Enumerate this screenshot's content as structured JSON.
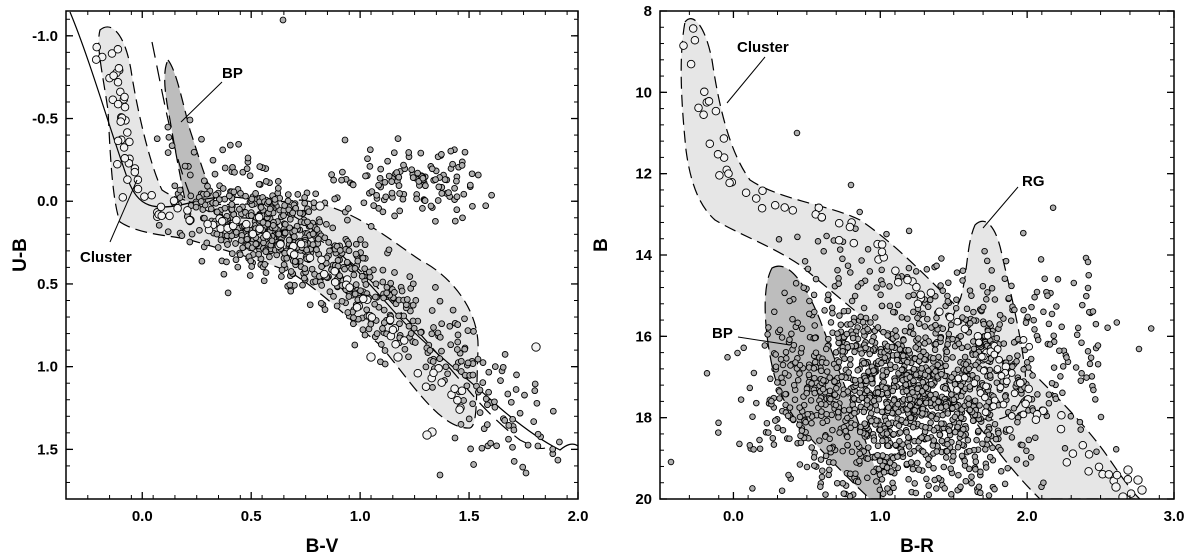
{
  "chart_data": [
    {
      "type": "scatter",
      "panel": "left",
      "xlabel": "B-V",
      "ylabel": "U-B",
      "xlim": [
        -0.35,
        2.0
      ],
      "ylim": [
        1.8,
        -1.15
      ],
      "y_inverted": true,
      "xticks": [
        "0.0",
        "0.5",
        "1.0",
        "1.5",
        "2.0"
      ],
      "yticks": [
        "-1.0",
        "-0.5",
        "0.0",
        "0.5",
        "1.0",
        "1.5"
      ],
      "annotations": [
        "BP",
        "Cluster"
      ],
      "grid": false,
      "regions": [
        {
          "label": "Cluster",
          "fill": "light-gray",
          "outline": "dashed"
        },
        {
          "label": "BP",
          "fill": "dark-gray",
          "outline": "dashed"
        }
      ],
      "reference_curves": [
        "solid intrinsic color sequence",
        "dashed reddened sequence"
      ]
    },
    {
      "type": "scatter",
      "panel": "right",
      "xlabel": "B-R",
      "ylabel": "B",
      "xlim": [
        -0.5,
        3.0
      ],
      "ylim": [
        20,
        8
      ],
      "y_inverted": true,
      "xticks": [
        "0.0",
        "1.0",
        "2.0",
        "3.0"
      ],
      "yticks": [
        "8",
        "10",
        "12",
        "14",
        "16",
        "18",
        "20"
      ],
      "annotations": [
        "Cluster",
        "RG",
        "BP"
      ],
      "grid": false,
      "regions": [
        {
          "label": "Cluster",
          "fill": "light-gray",
          "outline": "dashed"
        },
        {
          "label": "RG",
          "fill": "light-gray",
          "outline": "dashed"
        },
        {
          "label": "BP",
          "fill": "dark-gray",
          "outline": "dashed"
        }
      ]
    }
  ],
  "colors": {
    "cluster_region": "#e6e6e6",
    "bp_region": "#bdbdbd",
    "field_star": "#b0b0b0",
    "cluster_star": "#f3f3f3",
    "outline": "#000000"
  }
}
